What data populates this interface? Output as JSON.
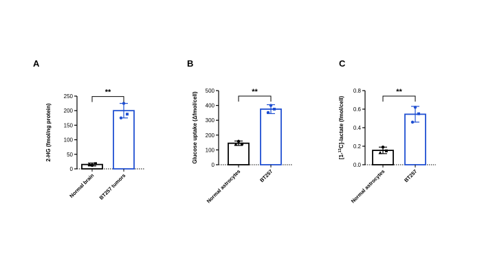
{
  "chart_data": [
    {
      "type": "bar",
      "panel": "A",
      "ylabel": "2-HG (fmol/ng protein)",
      "ylim": [
        0,
        250
      ],
      "yticks": [
        0,
        50,
        100,
        150,
        200,
        250
      ],
      "tick_labels": [
        "0",
        "50",
        "100",
        "150",
        "200",
        "250"
      ],
      "categories": [
        "Normal brain",
        "BT257 tumors"
      ],
      "colors": [
        "#000000",
        "#1f4fd1"
      ],
      "values": [
        15,
        200
      ],
      "errors": [
        5,
        25
      ],
      "points": [
        [
          12,
          18,
          15
        ],
        [
          225,
          188,
          175
        ]
      ],
      "significance": "**"
    },
    {
      "type": "bar",
      "panel": "B",
      "ylabel": "Glucose uptake (Δfmol/cell)",
      "ylim": [
        0,
        500
      ],
      "yticks": [
        0,
        100,
        200,
        300,
        400,
        500
      ],
      "tick_labels": [
        "0",
        "100",
        "200",
        "300",
        "400",
        "500"
      ],
      "categories": [
        "Normal astrocytes",
        "BT257"
      ],
      "colors": [
        "#000000",
        "#1f4fd1"
      ],
      "values": [
        145,
        375
      ],
      "errors": [
        15,
        30
      ],
      "points": [
        [
          158,
          140,
          138
        ],
        [
          400,
          375,
          352
        ]
      ],
      "significance": "**"
    },
    {
      "type": "bar",
      "panel": "C",
      "ylabel_prefix": "[1-",
      "ylabel_sup": "13",
      "ylabel_suffix": "C]-lactate (fmol/cell)",
      "ylim": [
        0,
        0.8
      ],
      "yticks": [
        0,
        0.2,
        0.4,
        0.6,
        0.8
      ],
      "tick_labels": [
        "0.0",
        "0.2",
        "0.4",
        "0.6",
        "0.8"
      ],
      "categories": [
        "Normal astrocytes",
        "BT257"
      ],
      "colors": [
        "#000000",
        "#1f4fd1"
      ],
      "values": [
        0.155,
        0.545
      ],
      "errors": [
        0.035,
        0.085
      ],
      "points": [
        [
          0.19,
          0.15,
          0.13
        ],
        [
          0.62,
          0.55,
          0.46
        ]
      ],
      "significance": "**"
    }
  ]
}
